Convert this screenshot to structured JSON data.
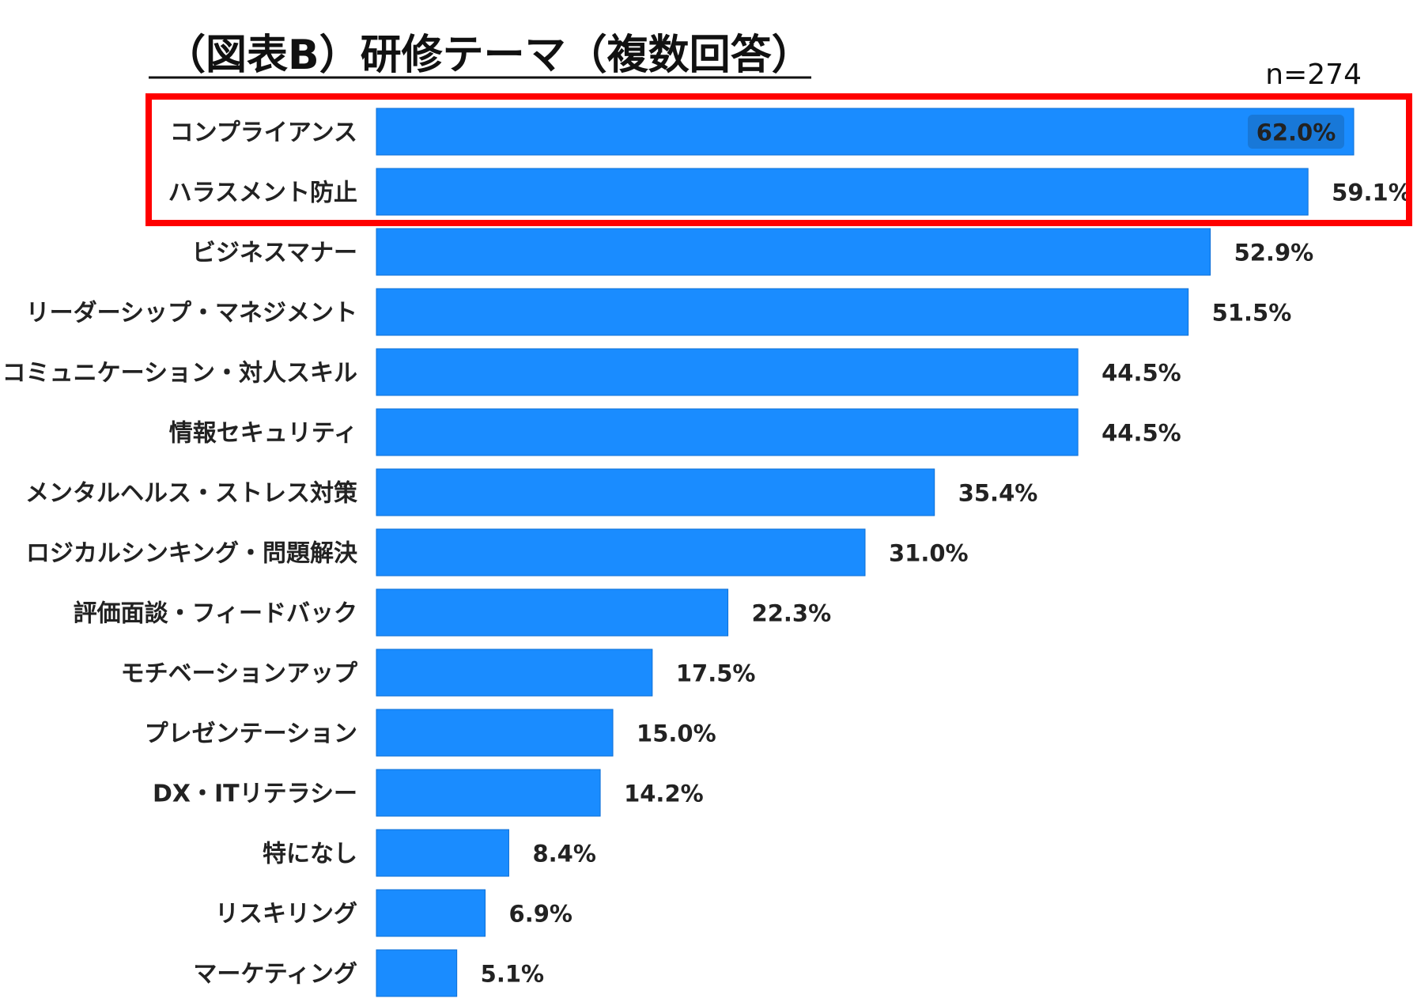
{
  "colors": {
    "bar": "#1a8cff",
    "bar_edge": "#0d6fd6",
    "highlight_frame": "#ff0000",
    "label_chip": "#1878d8"
  },
  "chart_data": {
    "type": "bar",
    "orientation": "horizontal",
    "title": "（図表B）研修テーマ（複数回答）",
    "sample_size": "n=274",
    "xlim": [
      0,
      62.0
    ],
    "grid": false,
    "legend": "none",
    "unit": "%",
    "highlighted_categories": [
      "コンプライアンス",
      "ハラスメント防止"
    ],
    "categories": [
      "コンプライアンス",
      "ハラスメント防止",
      "ビジネスマナー",
      "リーダーシップ・マネジメント",
      "コミュニケーション・対人スキル",
      "情報セキュリティ",
      "メンタルヘルス・ストレス対策",
      "ロジカルシンキング・問題解決",
      "評価面談・フィードバック",
      "モチベーションアップ",
      "プレゼンテーション",
      "DX・ITリテラシー",
      "特になし",
      "リスキリング",
      "マーケティング"
    ],
    "values": [
      62.0,
      59.1,
      52.9,
      51.5,
      44.5,
      44.5,
      35.4,
      31.0,
      22.3,
      17.5,
      15.0,
      14.2,
      8.4,
      6.9,
      5.1
    ],
    "value_labels": [
      "62.0%",
      "59.1%",
      "52.9%",
      "51.5%",
      "44.5%",
      "44.5%",
      "35.4%",
      "31.0%",
      "22.3%",
      "17.5%",
      "15.0%",
      "14.2%",
      "8.4%",
      "6.9%",
      "5.1%"
    ]
  }
}
